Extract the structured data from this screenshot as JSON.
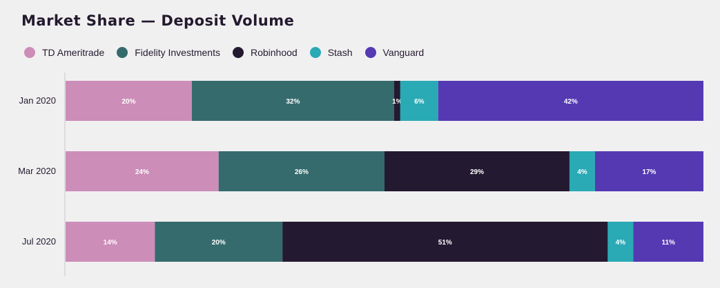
{
  "chart_data": {
    "type": "bar",
    "orientation": "horizontal",
    "stacked": true,
    "title": "Market Share — Deposit Volume",
    "categories": [
      "Jan 2020",
      "Mar 2020",
      "Jul 2020"
    ],
    "series": [
      {
        "name": "TD Ameritrade",
        "color": "#cc8db9",
        "values": [
          20,
          24,
          14
        ]
      },
      {
        "name": "Fidelity Investments",
        "color": "#356b6d",
        "values": [
          32,
          26,
          20
        ]
      },
      {
        "name": "Robinhood",
        "color": "#231a31",
        "values": [
          1,
          29,
          51
        ]
      },
      {
        "name": "Stash",
        "color": "#29aab5",
        "values": [
          6,
          4,
          4
        ]
      },
      {
        "name": "Vanguard",
        "color": "#5439b3",
        "values": [
          42,
          17,
          11
        ]
      }
    ],
    "xlim": [
      0,
      100
    ],
    "legend_position": "top-left",
    "grid": false
  }
}
